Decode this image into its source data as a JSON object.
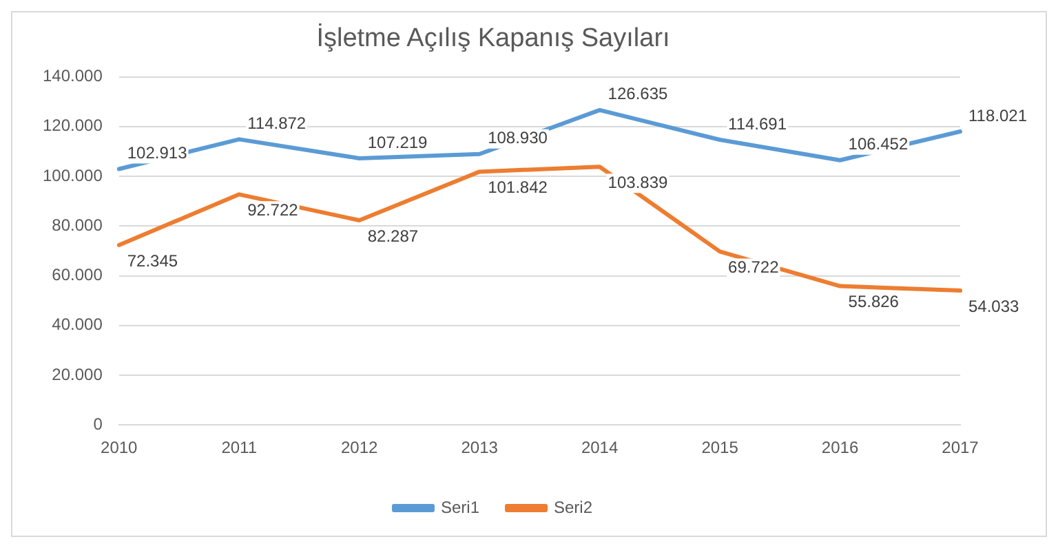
{
  "chart_data": {
    "type": "line",
    "title": "İşletme Açılış Kapanış Sayıları",
    "categories": [
      "2010",
      "2011",
      "2012",
      "2013",
      "2014",
      "2015",
      "2016",
      "2017"
    ],
    "series": [
      {
        "name": "Seri1",
        "color": "#5b9bd5",
        "values": [
          102913,
          114872,
          107219,
          108930,
          126635,
          114691,
          106452,
          118021
        ],
        "value_labels": [
          "102.913",
          "114.872",
          "107.219",
          "108.930",
          "126.635",
          "114.691",
          "106.452",
          "118.021"
        ]
      },
      {
        "name": "Seri2",
        "color": "#ed7d31",
        "values": [
          72345,
          92722,
          82287,
          101842,
          103839,
          69722,
          55826,
          54033
        ],
        "value_labels": [
          "72.345",
          "92.722",
          "82.287",
          "101.842",
          "103.839",
          "69.722",
          "55.826",
          "54.033"
        ]
      }
    ],
    "ylim": [
      0,
      140000
    ],
    "yticks": [
      {
        "value": 0,
        "label": "0"
      },
      {
        "value": 20000,
        "label": "20.000"
      },
      {
        "value": 40000,
        "label": "40.000"
      },
      {
        "value": 60000,
        "label": "60.000"
      },
      {
        "value": 80000,
        "label": "80.000"
      },
      {
        "value": 100000,
        "label": "100.000"
      },
      {
        "value": 120000,
        "label": "120.000"
      },
      {
        "value": 140000,
        "label": "140.000"
      }
    ],
    "grid": "y",
    "legend": "bottom",
    "marker": "none",
    "line_style": "solid"
  }
}
